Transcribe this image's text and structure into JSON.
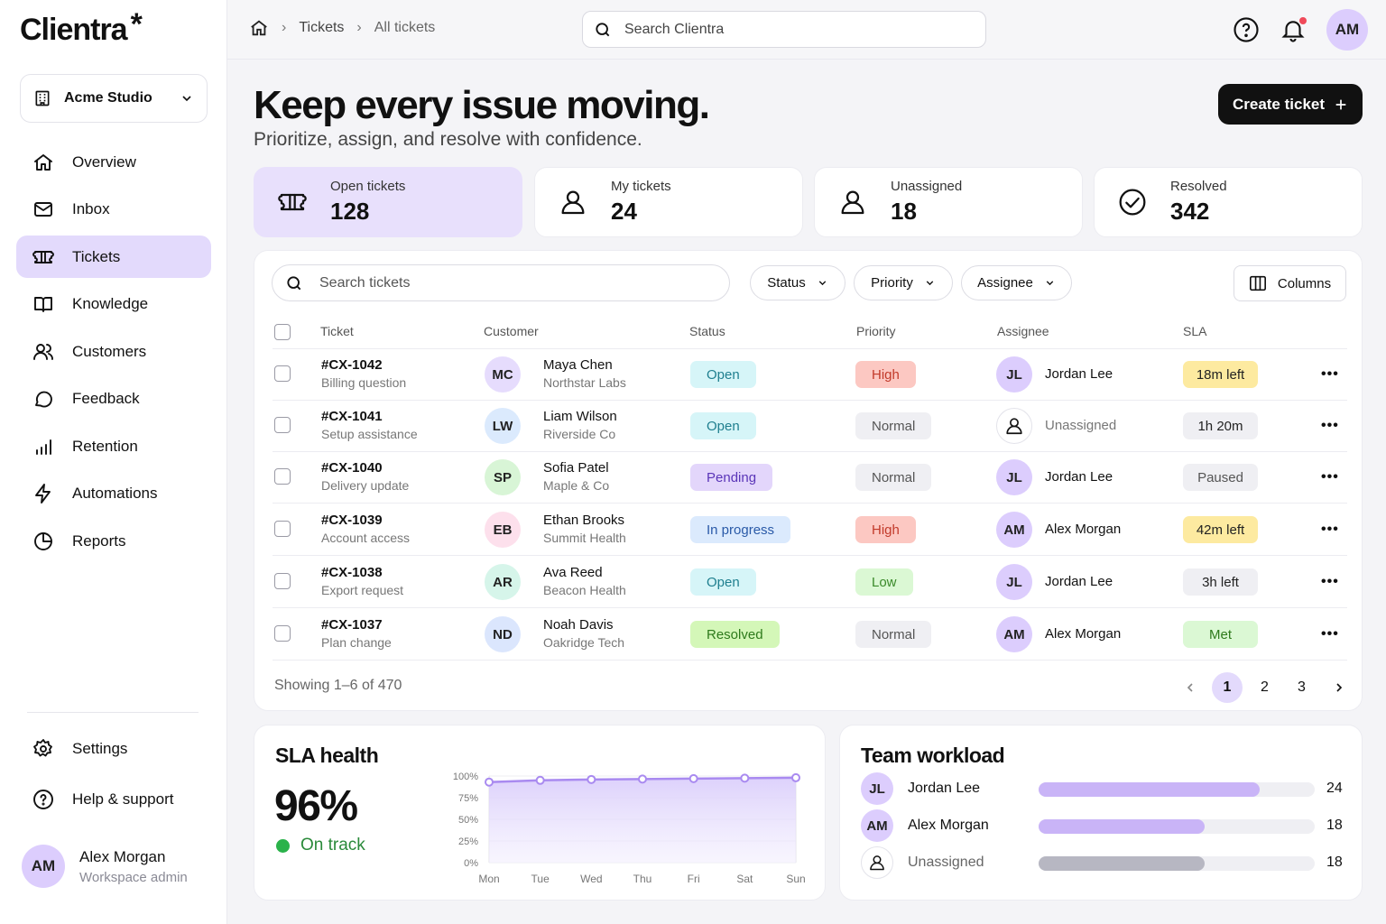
{
  "brand": {
    "name": "Clientra",
    "mark": "*"
  },
  "workspace": {
    "name": "Acme Studio"
  },
  "nav": [
    {
      "label": "Overview",
      "icon": "home-icon"
    },
    {
      "label": "Inbox",
      "icon": "mail-icon"
    },
    {
      "label": "Tickets",
      "icon": "ticket-icon",
      "active": true
    },
    {
      "label": "Knowledge",
      "icon": "book-icon"
    },
    {
      "label": "Customers",
      "icon": "users-icon"
    },
    {
      "label": "Feedback",
      "icon": "chat-icon"
    },
    {
      "label": "Retention",
      "icon": "bars-icon"
    },
    {
      "label": "Automations",
      "icon": "bolt-icon"
    },
    {
      "label": "Reports",
      "icon": "pie-icon"
    }
  ],
  "nav_bottom": [
    {
      "label": "Settings",
      "icon": "gear-icon"
    },
    {
      "label": "Help & support",
      "icon": "help-icon"
    }
  ],
  "user": {
    "initials": "AM",
    "name": "Alex Morgan",
    "role": "Workspace admin"
  },
  "breadcrumb": [
    "Tickets",
    "All tickets"
  ],
  "global_search": {
    "placeholder": "Search Clientra"
  },
  "header": {
    "title": "Keep every issue moving.",
    "subtitle": "Prioritize, assign, and resolve with confidence.",
    "create_label": "Create ticket"
  },
  "stats": [
    {
      "label": "Open tickets",
      "value": "128",
      "icon": "ticket-icon"
    },
    {
      "label": "My tickets",
      "value": "24",
      "icon": "user-icon"
    },
    {
      "label": "Unassigned",
      "value": "18",
      "icon": "user-icon"
    },
    {
      "label": "Resolved",
      "value": "342",
      "icon": "check-circle-icon"
    }
  ],
  "table": {
    "search_placeholder": "Search tickets",
    "filters": [
      "Status",
      "Priority",
      "Assignee"
    ],
    "columns_label": "Columns",
    "headers": [
      "Ticket",
      "Customer",
      "Status",
      "Priority",
      "Assignee",
      "SLA"
    ],
    "rows": [
      {
        "id": "#CX-1042",
        "subject": "Billing question",
        "cust_initials": "MC",
        "cust_name": "Maya Chen",
        "cust_org": "Northstar Labs",
        "status": "Open",
        "priority": "High",
        "assignee_initials": "JL",
        "assignee": "Jordan Lee",
        "sla": "18m left"
      },
      {
        "id": "#CX-1041",
        "subject": "Setup assistance",
        "cust_initials": "LW",
        "cust_name": "Liam Wilson",
        "cust_org": "Riverside Co",
        "status": "Open",
        "priority": "Normal",
        "assignee_initials": "",
        "assignee": "Unassigned",
        "sla": "1h 20m"
      },
      {
        "id": "#CX-1040",
        "subject": "Delivery update",
        "cust_initials": "SP",
        "cust_name": "Sofia Patel",
        "cust_org": "Maple & Co",
        "status": "Pending",
        "priority": "Normal",
        "assignee_initials": "JL",
        "assignee": "Jordan Lee",
        "sla": "Paused"
      },
      {
        "id": "#CX-1039",
        "subject": "Account access",
        "cust_initials": "EB",
        "cust_name": "Ethan Brooks",
        "cust_org": "Summit Health",
        "status": "In progress",
        "priority": "High",
        "assignee_initials": "AM",
        "assignee": "Alex Morgan",
        "sla": "42m left"
      },
      {
        "id": "#CX-1038",
        "subject": "Export request",
        "cust_initials": "AR",
        "cust_name": "Ava Reed",
        "cust_org": "Beacon Health",
        "status": "Open",
        "priority": "Low",
        "assignee_initials": "JL",
        "assignee": "Jordan Lee",
        "sla": "3h left"
      },
      {
        "id": "#CX-1037",
        "subject": "Plan change",
        "cust_initials": "ND",
        "cust_name": "Noah Davis",
        "cust_org": "Oakridge Tech",
        "status": "Resolved",
        "priority": "Normal",
        "assignee_initials": "AM",
        "assignee": "Alex Morgan",
        "sla": "Met"
      }
    ],
    "showing": "Showing 1–6 of 470",
    "pages": [
      "1",
      "2",
      "3"
    ],
    "current_page": "1"
  },
  "sla_health": {
    "title": "SLA health",
    "value": "96%",
    "status": "On track",
    "chart_data": {
      "type": "area",
      "x": [
        "Mon",
        "Tue",
        "Wed",
        "Thu",
        "Fri",
        "Sat",
        "Sun"
      ],
      "values": [
        93,
        95,
        96,
        96.5,
        97,
        97.5,
        98
      ],
      "ylim": [
        0,
        100
      ],
      "yticks": [
        "100%",
        "75%",
        "50%",
        "25%",
        "0%"
      ],
      "color": "#a98af0"
    }
  },
  "team_workload": {
    "title": "Team workload",
    "max": 30,
    "members": [
      {
        "initials": "JL",
        "name": "Jordan Lee",
        "count": 24,
        "label": "24"
      },
      {
        "initials": "AM",
        "name": "Alex Morgan",
        "count": 18,
        "label": "18"
      },
      {
        "initials": "",
        "name": "Unassigned",
        "count": 18,
        "label": "18"
      }
    ]
  },
  "colors": {
    "accent": "#e3dafc",
    "primary_btn": "#111111"
  }
}
